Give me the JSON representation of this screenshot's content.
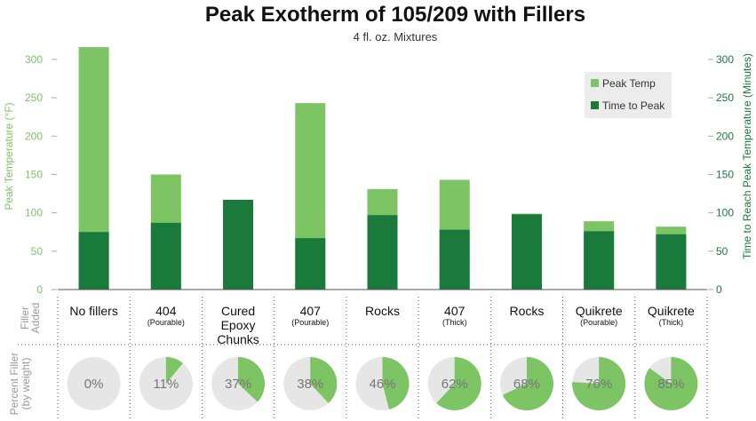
{
  "chart_data": {
    "type": "bar",
    "title": "Peak Exotherm of 105/209 with Fillers",
    "subtitle": "4 fl. oz. Mixtures",
    "ylabel_left": "Peak Temperature (°F)",
    "ylabel_right": "Time to Reach Peak Temperature (Minutes)",
    "ylim": [
      0,
      330
    ],
    "yticks": [
      0,
      50,
      100,
      150,
      200,
      250,
      300
    ],
    "grid": false,
    "legend_position": "top-right",
    "categories": [
      "No fillers",
      "404",
      "Cured Epoxy Chunks",
      "407",
      "Rocks",
      "407",
      "Rocks",
      "Quikrete",
      "Quikrete"
    ],
    "category_lines": [
      [
        "No fillers"
      ],
      [
        "404"
      ],
      [
        "Cured",
        "Epoxy",
        "Chunks"
      ],
      [
        "407"
      ],
      [
        "Rocks"
      ],
      [
        "407"
      ],
      [
        "Rocks"
      ],
      [
        "Quikrete"
      ],
      [
        "Quikrete"
      ]
    ],
    "category_sublabels": [
      "",
      "(Pourable)",
      "",
      "(Pourable)",
      "",
      "(Thick)",
      "",
      "(Pourable)",
      "(Thick)"
    ],
    "series": [
      {
        "name": "Peak Temp",
        "color": "#7dc464",
        "values": [
          316,
          150,
          117,
          243,
          131,
          143,
          99,
          89,
          82
        ]
      },
      {
        "name": "Time to Peak",
        "color": "#1a7a3c",
        "values": [
          75,
          87,
          117,
          67,
          97,
          78,
          98,
          76,
          72
        ]
      }
    ],
    "row_labels": {
      "filler_added": [
        "Filler",
        "Added"
      ],
      "percent_filler": [
        "Percent Filler",
        "(by weight)"
      ]
    },
    "percent_filler": [
      0,
      11,
      37,
      38,
      46,
      62,
      68,
      76,
      85
    ],
    "percent_filler_labels": [
      "0%",
      "11%",
      "37%",
      "38%",
      "46%",
      "62%",
      "68%",
      "76%",
      "85%"
    ],
    "pie_colors": {
      "filled": "#7dc464",
      "empty": "#e6e6e6"
    }
  }
}
